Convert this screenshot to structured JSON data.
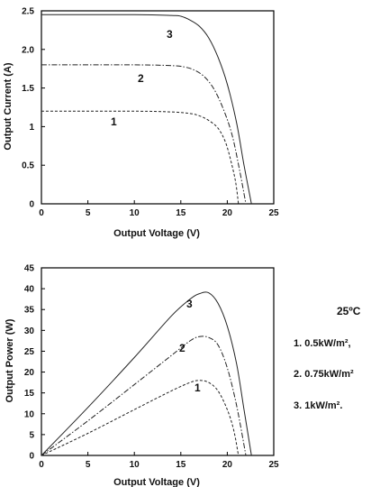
{
  "chart_data": [
    {
      "type": "line",
      "xlabel": "Output Voltage (V)",
      "ylabel": "Output Current (A)",
      "xlim": [
        0,
        25
      ],
      "ylim": [
        0,
        2.5
      ],
      "xticks": [
        "0",
        "5",
        "10",
        "15",
        "20",
        "25"
      ],
      "yticks": [
        "0",
        "0.5",
        "1",
        "1.5",
        "2.0",
        "2.5"
      ],
      "grid": false,
      "series": [
        {
          "name": "1",
          "voc": 21.2,
          "points": [
            [
              0,
              1.2
            ],
            [
              10,
              1.2
            ],
            [
              14,
              1.19
            ],
            [
              16,
              1.17
            ],
            [
              17,
              1.14
            ],
            [
              18,
              1.08
            ],
            [
              19,
              0.98
            ],
            [
              19.8,
              0.8
            ],
            [
              20.4,
              0.55
            ],
            [
              20.9,
              0.28
            ],
            [
              21.2,
              0
            ]
          ]
        },
        {
          "name": "2",
          "voc": 22.0,
          "points": [
            [
              0,
              1.8
            ],
            [
              10,
              1.8
            ],
            [
              14,
              1.79
            ],
            [
              15.5,
              1.77
            ],
            [
              16.5,
              1.73
            ],
            [
              17.5,
              1.65
            ],
            [
              18.5,
              1.5
            ],
            [
              19.5,
              1.25
            ],
            [
              20.5,
              0.9
            ],
            [
              21.3,
              0.45
            ],
            [
              22.0,
              0
            ]
          ]
        },
        {
          "name": "3",
          "voc": 22.6,
          "points": [
            [
              0,
              2.45
            ],
            [
              10,
              2.45
            ],
            [
              14,
              2.44
            ],
            [
              15,
              2.43
            ],
            [
              16,
              2.38
            ],
            [
              17,
              2.3
            ],
            [
              18,
              2.15
            ],
            [
              19,
              1.9
            ],
            [
              20,
              1.55
            ],
            [
              21,
              1.05
            ],
            [
              21.8,
              0.5
            ],
            [
              22.6,
              0
            ]
          ]
        }
      ],
      "curve_labels": [
        "3",
        "2",
        "1"
      ]
    },
    {
      "type": "line",
      "xlabel": "Output Voltage (V)",
      "ylabel": "Output Power (W)",
      "xlim": [
        0,
        25
      ],
      "ylim": [
        0,
        45
      ],
      "xticks": [
        "0",
        "5",
        "10",
        "15",
        "20",
        "25"
      ],
      "yticks": [
        "0",
        "5",
        "10",
        "15",
        "20",
        "25",
        "30",
        "35",
        "40",
        "45"
      ],
      "grid": false,
      "series": [
        {
          "name": "1",
          "points": [
            [
              0,
              0
            ],
            [
              5,
              5.3
            ],
            [
              10,
              11
            ],
            [
              14,
              15.5
            ],
            [
              16,
              17.5
            ],
            [
              17,
              18
            ],
            [
              18,
              17.5
            ],
            [
              19,
              15.5
            ],
            [
              20,
              11
            ],
            [
              20.7,
              6
            ],
            [
              21.2,
              0
            ]
          ]
        },
        {
          "name": "2",
          "points": [
            [
              0,
              0
            ],
            [
              5,
              8.3
            ],
            [
              10,
              17
            ],
            [
              14,
              24
            ],
            [
              16,
              27.5
            ],
            [
              17,
              28.5
            ],
            [
              18,
              28.3
            ],
            [
              19,
              26.5
            ],
            [
              20,
              21
            ],
            [
              21,
              12
            ],
            [
              22,
              0
            ]
          ]
        },
        {
          "name": "3",
          "points": [
            [
              0,
              0
            ],
            [
              5,
              11.5
            ],
            [
              10,
              23.5
            ],
            [
              14,
              33.5
            ],
            [
              16,
              37.5
            ],
            [
              17,
              38.8
            ],
            [
              18,
              39
            ],
            [
              19,
              36.5
            ],
            [
              20,
              31
            ],
            [
              21,
              22
            ],
            [
              21.8,
              11
            ],
            [
              22.6,
              0
            ]
          ]
        }
      ],
      "curve_labels": [
        "3",
        "2",
        "1"
      ]
    }
  ],
  "legend": {
    "temperature": "25ºC",
    "items": [
      "1. 0.5kW/m²,",
      "2. 0.75kW/m²",
      "3. 1kW/m²."
    ]
  }
}
